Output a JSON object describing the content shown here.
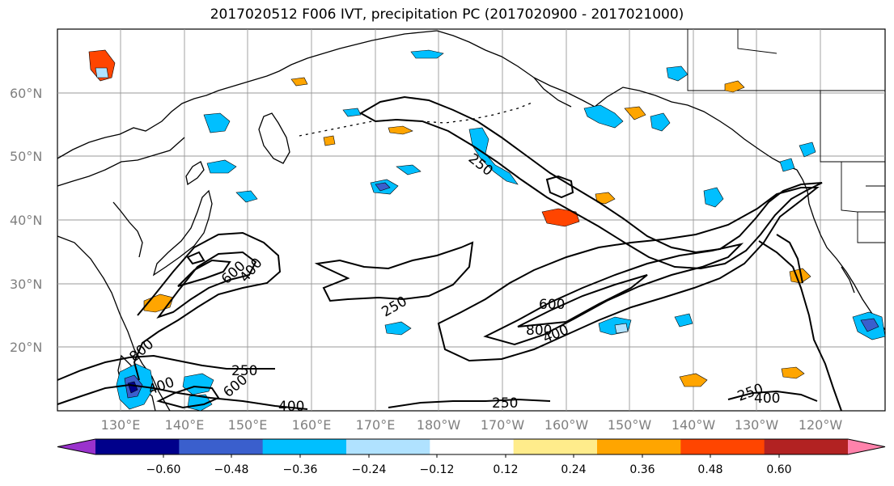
{
  "title": "2017020512 F006 IVT, precipitation PC (2017020900 - 2017021000)",
  "map": {
    "lat_labels": [
      "60°N",
      "50°N",
      "40°N",
      "30°N",
      "20°N"
    ],
    "lon_labels": [
      "130°E",
      "140°E",
      "150°E",
      "160°E",
      "170°E",
      "180°W",
      "170°W",
      "160°W",
      "150°W",
      "140°W",
      "130°W",
      "120°W"
    ],
    "ivt_contour_labels": [
      "250",
      "400",
      "600",
      "800",
      "250",
      "400",
      "600",
      "250",
      "400",
      "600",
      "800",
      "400",
      "250",
      "250",
      "400"
    ]
  },
  "colorbar": {
    "ticks": [
      "−0.60",
      "−0.48",
      "−0.36",
      "−0.24",
      "−0.12",
      "0.12",
      "0.24",
      "0.36",
      "0.48",
      "0.60"
    ],
    "colors": [
      "#9a32cd",
      "#00008b",
      "#3a5fcd",
      "#00bfff",
      "#b0e2ff",
      "#ffffff",
      "#ffec8b",
      "#ffa500",
      "#ff4500",
      "#b22222",
      "#ff82ab"
    ]
  }
}
